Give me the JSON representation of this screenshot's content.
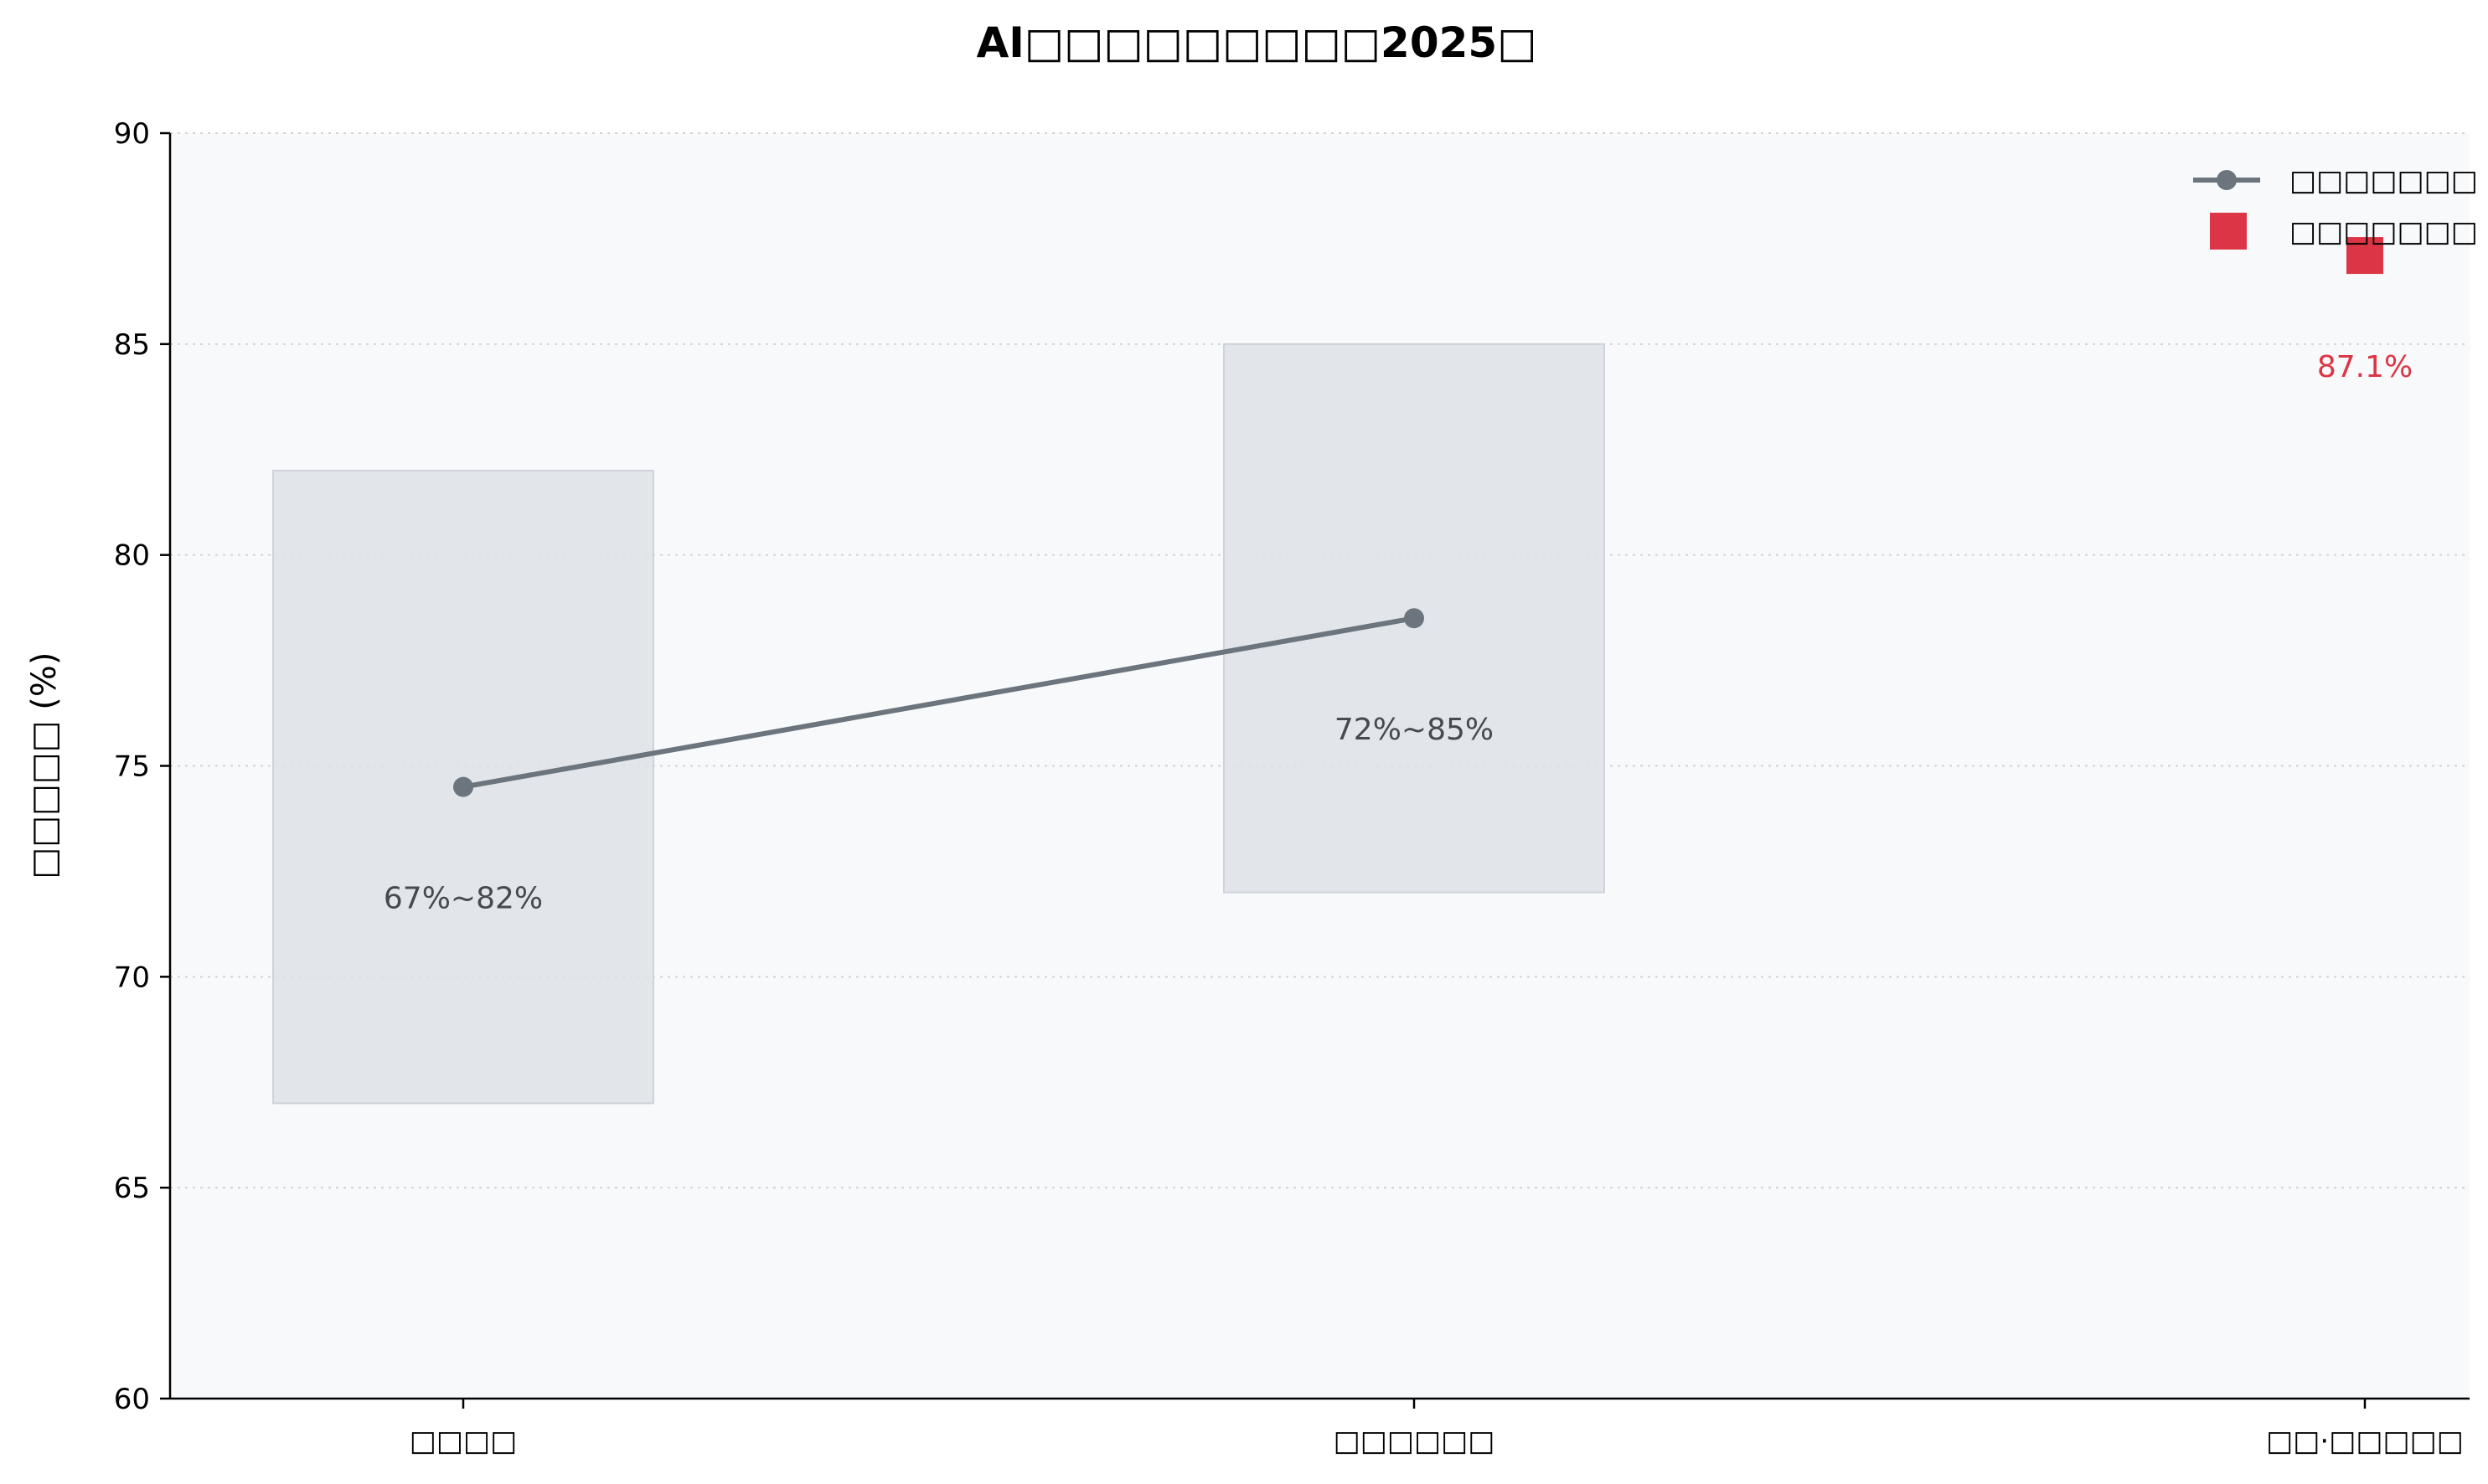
{
  "chart_data": {
    "type": "line",
    "title": "AI□□□□□□□□□2025□",
    "ylabel": "□□□□□ (%)",
    "xlabel": "",
    "ylim": [
      60,
      90
    ],
    "yticks": [
      60,
      65,
      70,
      75,
      80,
      85,
      90
    ],
    "grid": "horizontal-dotted",
    "legend_placement": "top-right",
    "categories": [
      "□□□□",
      "□□□□□□",
      "□□·□□□□□"
    ],
    "ranges": [
      {
        "category_index": 0,
        "low": 67,
        "high": 82,
        "label": "67%~82%"
      },
      {
        "category_index": 1,
        "low": 72,
        "high": 85,
        "label": "72%~85%"
      }
    ],
    "series": [
      {
        "name": "□□□□□□□",
        "kind": "line",
        "color": "#6c757d",
        "points": [
          {
            "x": 0,
            "y": 74.5
          },
          {
            "x": 1,
            "y": 78.5
          }
        ]
      },
      {
        "name": "□□□□□□□",
        "kind": "square",
        "color": "#dc3545",
        "points": [
          {
            "x": 2,
            "y": 87.1,
            "label": "87.1%"
          }
        ]
      }
    ],
    "colors": {
      "background": "#f8f9fa",
      "range_fill": "#dee2e6",
      "line": "#6c757d",
      "highlight": "#dc3545"
    }
  }
}
